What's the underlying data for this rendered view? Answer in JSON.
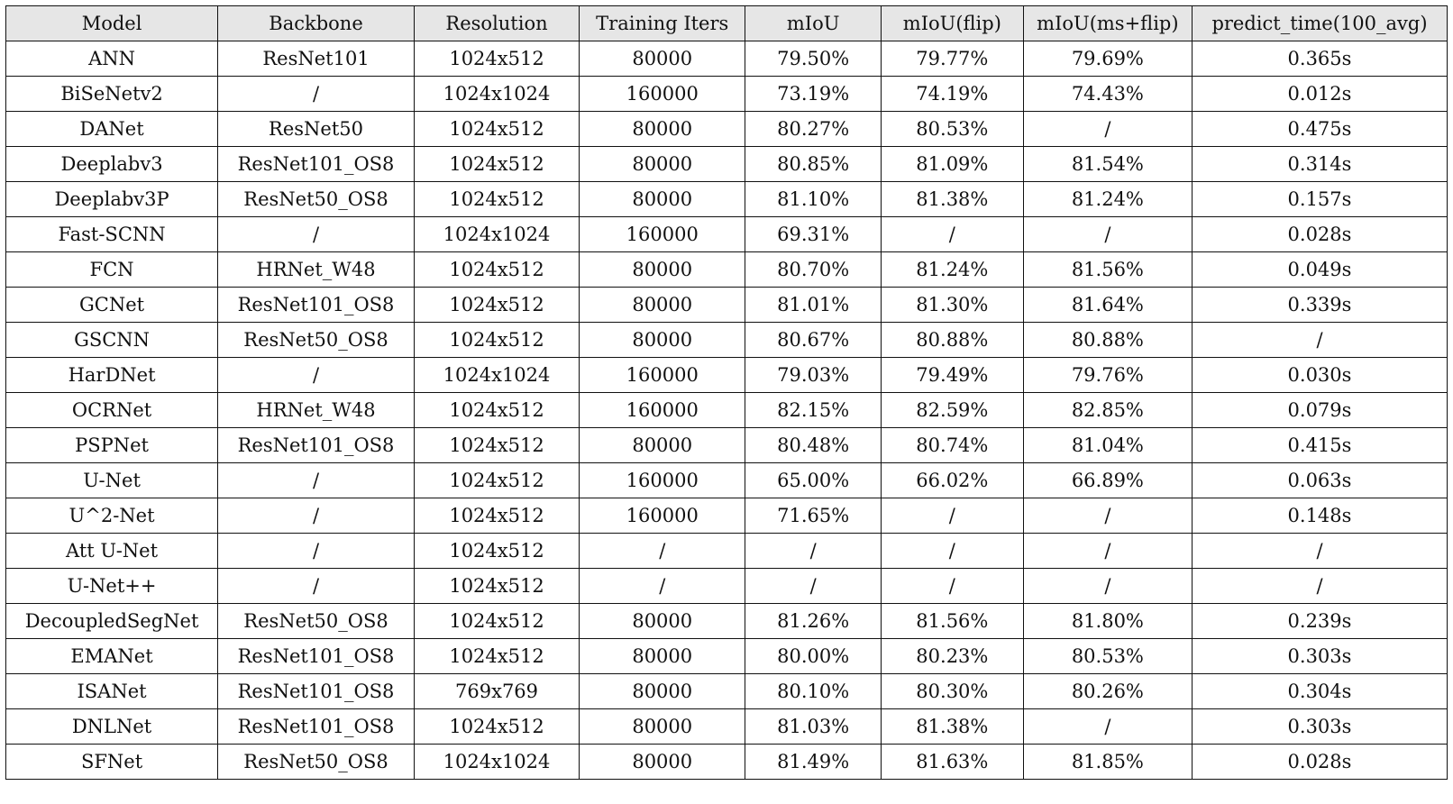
{
  "table": {
    "columns": [
      "Model",
      "Backbone",
      "Resolution",
      "Training Iters",
      "mIoU",
      "mIoU(flip)",
      "mIoU(ms+flip)",
      "predict_time(100_avg)"
    ],
    "rows": [
      [
        "ANN",
        "ResNet101",
        "1024x512",
        "80000",
        "79.50%",
        "79.77%",
        "79.69%",
        "0.365s"
      ],
      [
        "BiSeNetv2",
        "/",
        "1024x1024",
        "160000",
        "73.19%",
        "74.19%",
        "74.43%",
        "0.012s"
      ],
      [
        "DANet",
        "ResNet50",
        "1024x512",
        "80000",
        "80.27%",
        "80.53%",
        "/",
        "0.475s"
      ],
      [
        "Deeplabv3",
        "ResNet101_OS8",
        "1024x512",
        "80000",
        "80.85%",
        "81.09%",
        "81.54%",
        "0.314s"
      ],
      [
        "Deeplabv3P",
        "ResNet50_OS8",
        "1024x512",
        "80000",
        "81.10%",
        "81.38%",
        "81.24%",
        "0.157s"
      ],
      [
        "Fast-SCNN",
        "/",
        "1024x1024",
        "160000",
        "69.31%",
        "/",
        "/",
        "0.028s"
      ],
      [
        "FCN",
        "HRNet_W48",
        "1024x512",
        "80000",
        "80.70%",
        "81.24%",
        "81.56%",
        "0.049s"
      ],
      [
        "GCNet",
        "ResNet101_OS8",
        "1024x512",
        "80000",
        "81.01%",
        "81.30%",
        "81.64%",
        "0.339s"
      ],
      [
        "GSCNN",
        "ResNet50_OS8",
        "1024x512",
        "80000",
        "80.67%",
        "80.88%",
        "80.88%",
        "/"
      ],
      [
        "HarDNet",
        "/",
        "1024x1024",
        "160000",
        "79.03%",
        "79.49%",
        "79.76%",
        "0.030s"
      ],
      [
        "OCRNet",
        "HRNet_W48",
        "1024x512",
        "160000",
        "82.15%",
        "82.59%",
        "82.85%",
        "0.079s"
      ],
      [
        "PSPNet",
        "ResNet101_OS8",
        "1024x512",
        "80000",
        "80.48%",
        "80.74%",
        "81.04%",
        "0.415s"
      ],
      [
        "U-Net",
        "/",
        "1024x512",
        "160000",
        "65.00%",
        "66.02%",
        "66.89%",
        "0.063s"
      ],
      [
        "U^2-Net",
        "/",
        "1024x512",
        "160000",
        "71.65%",
        "/",
        "/",
        "0.148s"
      ],
      [
        "Att U-Net",
        "/",
        "1024x512",
        "/",
        "/",
        "/",
        "/",
        "/"
      ],
      [
        "U-Net++",
        "/",
        "1024x512",
        "/",
        "/",
        "/",
        "/",
        "/"
      ],
      [
        "DecoupledSegNet",
        "ResNet50_OS8",
        "1024x512",
        "80000",
        "81.26%",
        "81.56%",
        "81.80%",
        "0.239s"
      ],
      [
        "EMANet",
        "ResNet101_OS8",
        "1024x512",
        "80000",
        "80.00%",
        "80.23%",
        "80.53%",
        "0.303s"
      ],
      [
        "ISANet",
        "ResNet101_OS8",
        "769x769",
        "80000",
        "80.10%",
        "80.30%",
        "80.26%",
        "0.304s"
      ],
      [
        "DNLNet",
        "ResNet101_OS8",
        "1024x512",
        "80000",
        "81.03%",
        "81.38%",
        "/",
        "0.303s"
      ],
      [
        "SFNet",
        "ResNet50_OS8",
        "1024x1024",
        "80000",
        "81.49%",
        "81.63%",
        "81.85%",
        "0.028s"
      ]
    ]
  }
}
